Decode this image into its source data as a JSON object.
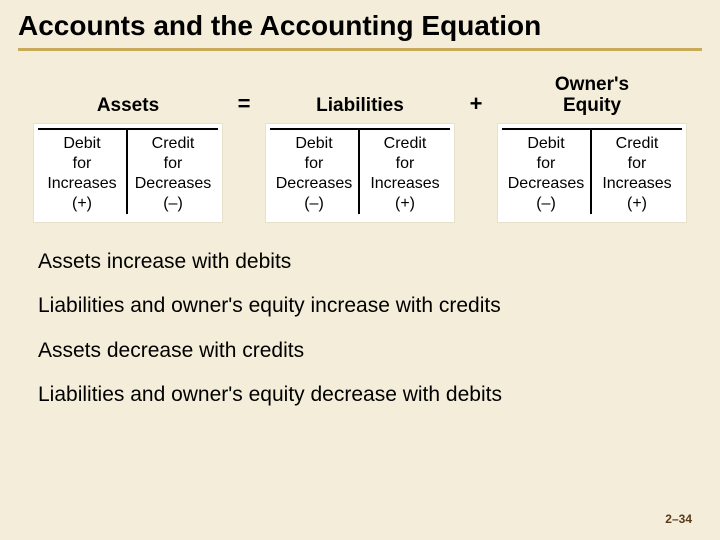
{
  "title": "Accounts and the Accounting Equation",
  "colors": {
    "background": "#f4edd9",
    "rule": "#c9a95a",
    "taccount_bg": "#ffffff",
    "text": "#000000",
    "pagenum": "#5a3a1a"
  },
  "equation": {
    "terms": [
      {
        "header": "Assets",
        "debit": {
          "l1": "Debit",
          "l2": "for",
          "l3": "Increases",
          "l4": "(+)"
        },
        "credit": {
          "l1": "Credit",
          "l2": "for",
          "l3": "Decreases",
          "l4": "(–)"
        }
      },
      {
        "header": "Liabilities",
        "debit": {
          "l1": "Debit",
          "l2": "for",
          "l3": "Decreases",
          "l4": "(–)"
        },
        "credit": {
          "l1": "Credit",
          "l2": "for",
          "l3": "Increases",
          "l4": "(+)"
        }
      },
      {
        "header": "Owner's\nEquity",
        "debit": {
          "l1": "Debit",
          "l2": "for",
          "l3": "Decreases",
          "l4": "(–)"
        },
        "credit": {
          "l1": "Credit",
          "l2": "for",
          "l3": "Increases",
          "l4": "(+)"
        }
      }
    ],
    "ops": [
      "=",
      "+"
    ]
  },
  "notes": [
    "Assets increase with debits",
    "Liabilities and owner's equity increase with credits",
    "Assets decrease with credits",
    "Liabilities and owner's equity decrease with debits"
  ],
  "page_number": "2–34"
}
